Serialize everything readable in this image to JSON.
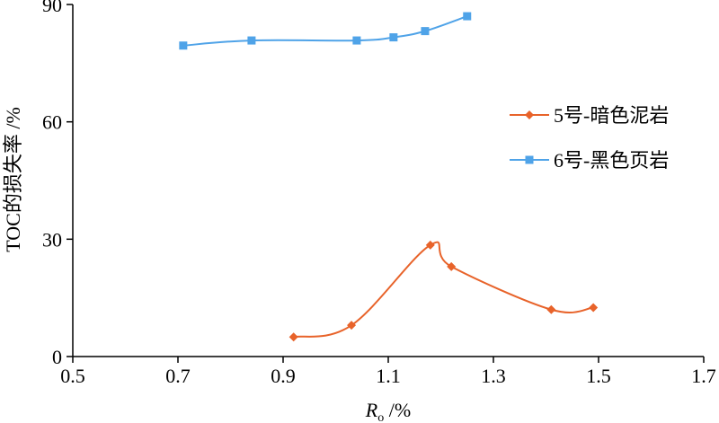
{
  "chart_data": {
    "type": "line",
    "xlabel_main": "R",
    "xlabel_sub": "o",
    "xlabel_unit": " /%",
    "ylabel": "TOC的损失率 /%",
    "xlim": [
      0.5,
      1.7
    ],
    "ylim": [
      0,
      90
    ],
    "x_ticks": [
      "0.5",
      "0.7",
      "0.9",
      "1.1",
      "1.3",
      "1.5",
      "1.7"
    ],
    "y_ticks": [
      "0",
      "30",
      "60",
      "90"
    ],
    "grid": false,
    "legend_position": "right",
    "series": [
      {
        "name": "5号-暗色泥岩",
        "color": "#E8632A",
        "marker": "diamond",
        "x": [
          0.92,
          1.03,
          1.18,
          1.22,
          1.41,
          1.49
        ],
        "y": [
          5,
          8,
          28.5,
          23,
          12,
          12.5
        ]
      },
      {
        "name": "6号-黑色页岩",
        "color": "#4FA3E8",
        "marker": "square",
        "x": [
          0.71,
          0.84,
          1.04,
          1.11,
          1.17,
          1.25
        ],
        "y": [
          79.5,
          80.8,
          80.8,
          81.6,
          83.2,
          87
        ]
      }
    ]
  }
}
